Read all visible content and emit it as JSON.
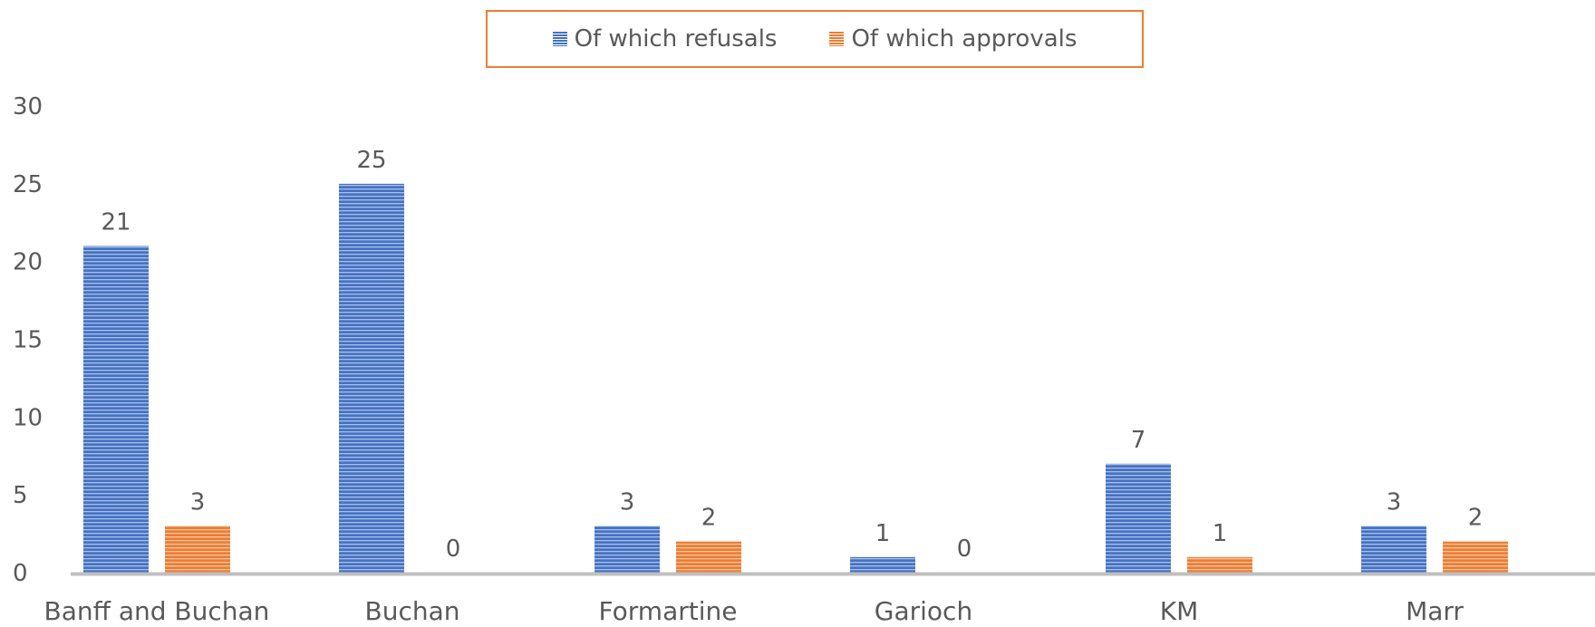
{
  "chart_data": {
    "type": "bar",
    "categories": [
      "Banff and Buchan",
      "Buchan",
      "Formartine",
      "Garioch",
      "KM",
      "Marr"
    ],
    "series": [
      {
        "name": "Of which refusals",
        "values": [
          21,
          25,
          3,
          1,
          7,
          3
        ],
        "color": "#4472c4"
      },
      {
        "name": "Of which approvals",
        "values": [
          3,
          0,
          2,
          0,
          1,
          2
        ],
        "color": "#ed7d31"
      }
    ],
    "ylim": [
      0,
      30
    ],
    "yticks": [
      0,
      5,
      10,
      15,
      20,
      25,
      30
    ],
    "xlabel": "",
    "ylabel": "",
    "grid": false,
    "legend_position": "top",
    "bar_pattern": "horizontal-stripes",
    "data_labels": true
  }
}
